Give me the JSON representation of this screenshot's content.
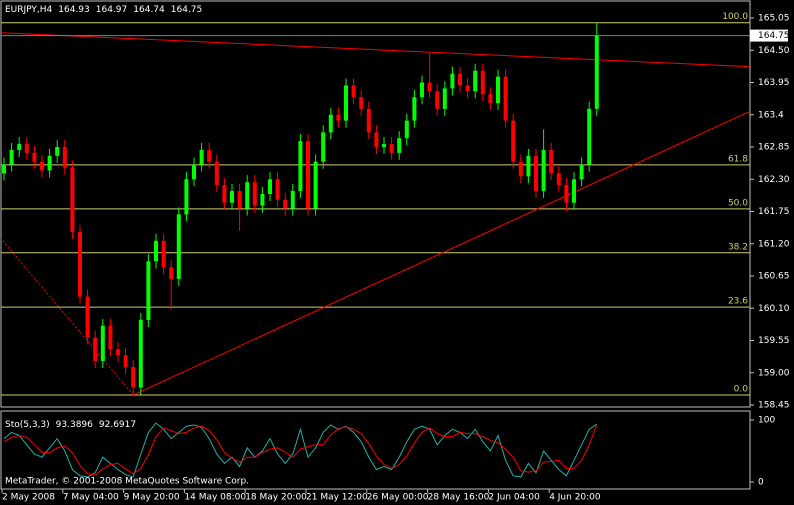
{
  "chart_data": {
    "type": "candlestick",
    "symbol": "EURJPY,H4",
    "quote": [
      164.93,
      164.97,
      164.74,
      164.75
    ],
    "categories": [
      "2 May 2008",
      null,
      null,
      null,
      null,
      null,
      null,
      null,
      "7 May 04:00",
      null,
      null,
      null,
      null,
      null,
      null,
      null,
      "9 May 20:00",
      null,
      null,
      null,
      null,
      null,
      null,
      null,
      "14 May 08:00",
      null,
      null,
      null,
      null,
      null,
      null,
      null,
      "18 May 20:00",
      null,
      null,
      null,
      null,
      null,
      null,
      null,
      "21 May 12:00",
      null,
      null,
      null,
      null,
      null,
      null,
      null,
      "26 May 00:00",
      null,
      null,
      null,
      null,
      null,
      null,
      null,
      "28 May 16:00",
      null,
      null,
      null,
      null,
      null,
      null,
      null,
      "2 Jun 04:00",
      null,
      null,
      null,
      null,
      null,
      null,
      null,
      "4 Jun 20:00",
      null,
      null,
      null,
      null,
      null,
      null
    ],
    "open": [
      162.4,
      162.55,
      162.8,
      162.9,
      162.75,
      162.6,
      162.45,
      162.7,
      162.85,
      162.5,
      161.4,
      160.3,
      159.6,
      159.2,
      159.8,
      159.4,
      159.3,
      159.1,
      158.75,
      159.9,
      160.9,
      161.25,
      160.8,
      160.6,
      161.7,
      162.3,
      162.55,
      162.8,
      162.6,
      162.2,
      161.9,
      162.1,
      161.8,
      162.25,
      161.85,
      162.05,
      162.3,
      161.95,
      161.8,
      162.1,
      162.95,
      161.8,
      162.6,
      163.1,
      163.4,
      163.3,
      163.9,
      163.7,
      163.5,
      163.1,
      162.85,
      162.9,
      162.75,
      163.0,
      163.3,
      163.7,
      163.95,
      163.8,
      163.5,
      163.85,
      164.1,
      163.9,
      163.8,
      164.15,
      163.75,
      163.6,
      164.05,
      163.3,
      162.6,
      162.35,
      162.7,
      162.1,
      162.8,
      162.4,
      162.2,
      161.9,
      162.3,
      162.55,
      163.5
    ],
    "high": [
      162.67,
      162.92,
      163.02,
      163.02,
      162.87,
      162.72,
      162.82,
      162.97,
      162.97,
      162.62,
      161.52,
      160.42,
      159.72,
      159.92,
      159.92,
      159.52,
      159.42,
      159.22,
      160.02,
      161.02,
      161.37,
      161.37,
      160.92,
      161.82,
      162.42,
      162.67,
      162.92,
      162.92,
      162.72,
      162.32,
      162.22,
      162.22,
      162.37,
      162.37,
      162.17,
      162.42,
      162.42,
      162.07,
      162.22,
      163.07,
      163.07,
      162.72,
      163.22,
      163.52,
      163.52,
      164.02,
      164.02,
      163.82,
      163.62,
      163.22,
      163.02,
      163.02,
      163.12,
      163.42,
      163.82,
      164.07,
      164.45,
      163.92,
      163.97,
      164.22,
      164.22,
      164.02,
      164.27,
      164.27,
      163.87,
      164.17,
      164.17,
      163.42,
      162.72,
      162.82,
      162.82,
      163.15,
      162.92,
      162.52,
      162.32,
      162.42,
      162.67,
      163.62,
      164.97
    ],
    "low": [
      162.28,
      162.43,
      162.68,
      162.63,
      162.48,
      162.33,
      162.33,
      162.58,
      162.38,
      161.28,
      160.18,
      159.48,
      159.08,
      159.08,
      159.28,
      159.18,
      158.98,
      158.62,
      158.63,
      159.78,
      160.78,
      160.68,
      160.08,
      160.48,
      161.58,
      162.18,
      162.43,
      162.48,
      162.08,
      161.78,
      161.78,
      161.42,
      161.68,
      161.73,
      161.73,
      161.93,
      161.83,
      161.68,
      161.68,
      161.98,
      161.68,
      161.68,
      162.48,
      162.98,
      163.18,
      163.18,
      163.58,
      163.38,
      162.98,
      162.73,
      162.73,
      162.63,
      162.63,
      162.88,
      163.18,
      163.58,
      163.68,
      163.38,
      163.38,
      163.73,
      163.78,
      163.68,
      163.68,
      163.63,
      163.48,
      163.48,
      163.18,
      162.48,
      162.23,
      162.23,
      161.98,
      161.98,
      162.28,
      162.08,
      161.75,
      161.78,
      162.18,
      162.43,
      163.38
    ],
    "close": [
      162.55,
      162.8,
      162.9,
      162.75,
      162.6,
      162.45,
      162.7,
      162.85,
      162.5,
      161.4,
      160.3,
      159.6,
      159.2,
      159.8,
      159.4,
      159.3,
      159.1,
      158.75,
      159.9,
      160.9,
      161.25,
      160.8,
      160.6,
      161.7,
      162.3,
      162.55,
      162.8,
      162.6,
      162.2,
      161.9,
      162.1,
      161.8,
      162.25,
      161.85,
      162.05,
      162.3,
      161.95,
      161.8,
      162.1,
      162.95,
      161.8,
      162.6,
      163.1,
      163.4,
      163.3,
      163.9,
      163.7,
      163.5,
      163.1,
      162.85,
      162.9,
      162.75,
      163.0,
      163.3,
      163.7,
      163.95,
      163.8,
      163.5,
      163.85,
      164.1,
      163.9,
      163.8,
      164.15,
      163.75,
      163.6,
      164.05,
      163.3,
      162.6,
      162.35,
      162.7,
      162.1,
      162.8,
      162.4,
      162.2,
      161.9,
      162.3,
      162.55,
      163.5,
      164.75
    ],
    "up_color": "#00ff00",
    "down_color": "#ff0000",
    "ylim": [
      158.45,
      165.05
    ],
    "yticks": [
      165.05,
      {
        "value": 164.5,
        "label": "164.50"
      },
      163.95,
      163.4,
      162.85,
      {
        "value": 162.3,
        "label": "162.30"
      },
      161.75,
      {
        "value": 161.2,
        "label": "161.20"
      },
      160.65,
      {
        "value": 160.1,
        "label": "160.10"
      },
      159.55,
      {
        "value": 159.0,
        "label": "159.00"
      },
      158.45
    ],
    "trendlines": [
      {
        "color": "#ff0000",
        "style": "solid",
        "x": [
          -0.5,
          98
        ],
        "y": [
          164.8,
          164.22
        ]
      },
      {
        "color": "#ff0000",
        "style": "solid",
        "x": [
          17,
          98
        ],
        "y": [
          158.62,
          163.45
        ]
      },
      {
        "color": "#ff0000",
        "style": "dotted",
        "x": [
          -0.5,
          17
        ],
        "y": [
          161.3,
          158.62
        ]
      }
    ],
    "fibo": {
      "low": 158.62,
      "high": 164.97,
      "color": "#d0d070",
      "levels": [
        {
          "value": 100,
          "label": "100.0"
        },
        61.8,
        {
          "value": 50,
          "label": "50.0"
        },
        38.2,
        23.6,
        {
          "value": 0,
          "label": "0.0"
        }
      ]
    },
    "indicator": {
      "type": "line",
      "name": "Sto(5,3,3)",
      "ylim": [
        0,
        100
      ],
      "yticks": [
        0,
        100
      ],
      "series": [
        {
          "color": "#20b2aa",
          "values": [
            70,
            80,
            75,
            60,
            45,
            40,
            55,
            70,
            50,
            20,
            10,
            8,
            15,
            40,
            30,
            20,
            12,
            8,
            45,
            80,
            95,
            85,
            70,
            80,
            90,
            92,
            88,
            70,
            45,
            30,
            40,
            25,
            55,
            40,
            50,
            70,
            45,
            30,
            45,
            85,
            40,
            55,
            80,
            92,
            85,
            90,
            80,
            65,
            40,
            20,
            25,
            20,
            40,
            65,
            85,
            90,
            85,
            60,
            75,
            85,
            80,
            70,
            85,
            65,
            50,
            75,
            35,
            10,
            8,
            30,
            15,
            50,
            35,
            20,
            10,
            35,
            60,
            85,
            93.3896
          ]
        },
        {
          "color": "#ff0000",
          "values": [
            65,
            72,
            75,
            72,
            60,
            48,
            47,
            55,
            58,
            47,
            27,
            13,
            11,
            21,
            28,
            30,
            21,
            13,
            22,
            44,
            73,
            87,
            83,
            78,
            80,
            87,
            90,
            83,
            68,
            48,
            38,
            32,
            40,
            40,
            48,
            53,
            55,
            48,
            40,
            53,
            57,
            60,
            60,
            76,
            86,
            89,
            85,
            78,
            62,
            42,
            28,
            22,
            28,
            42,
            63,
            80,
            87,
            78,
            73,
            73,
            80,
            78,
            78,
            73,
            67,
            63,
            53,
            40,
            18,
            16,
            18,
            32,
            33,
            35,
            22,
            22,
            35,
            60,
            92.6917
          ]
        }
      ]
    },
    "copyright": "MetaTrader, © 2001-2008 MetaQuotes Software Corp."
  }
}
